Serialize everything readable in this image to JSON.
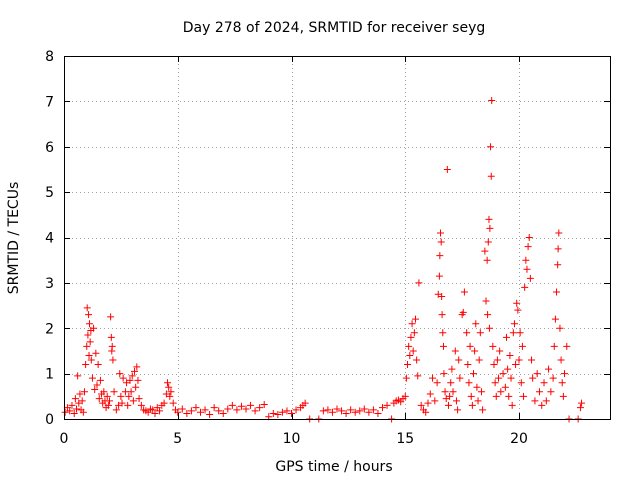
{
  "chart_data": {
    "type": "scatter",
    "title": "Day 278 of 2024, SRMTID for receiver seyg",
    "xlabel": "GPS time / hours",
    "ylabel": "SRMTID / TECUs",
    "xlim": [
      0,
      24
    ],
    "ylim": [
      0,
      8
    ],
    "xticks": [
      0,
      5,
      10,
      15,
      20
    ],
    "yticks": [
      0,
      1,
      2,
      3,
      4,
      5,
      6,
      7,
      8
    ],
    "grid": true,
    "marker": "+",
    "color": "#ff0000",
    "series": [
      {
        "name": "SRMTID",
        "points": [
          [
            0.05,
            0.15
          ],
          [
            0.15,
            0.25
          ],
          [
            0.25,
            0.18
          ],
          [
            0.35,
            0.3
          ],
          [
            0.45,
            0.12
          ],
          [
            0.5,
            0.45
          ],
          [
            0.55,
            0.22
          ],
          [
            0.6,
            0.95
          ],
          [
            0.65,
            0.35
          ],
          [
            0.7,
            0.55
          ],
          [
            0.75,
            0.2
          ],
          [
            0.8,
            0.4
          ],
          [
            0.85,
            0.15
          ],
          [
            0.9,
            0.6
          ],
          [
            0.95,
            1.2
          ],
          [
            1.0,
            1.6
          ],
          [
            1.02,
            2.45
          ],
          [
            1.05,
            1.85
          ],
          [
            1.08,
            2.3
          ],
          [
            1.1,
            1.4
          ],
          [
            1.12,
            2.1
          ],
          [
            1.15,
            1.7
          ],
          [
            1.18,
            1.95
          ],
          [
            1.2,
            1.3
          ],
          [
            1.25,
            0.9
          ],
          [
            1.3,
            2.0
          ],
          [
            1.35,
            0.65
          ],
          [
            1.4,
            1.45
          ],
          [
            1.45,
            0.75
          ],
          [
            1.5,
            1.2
          ],
          [
            1.55,
            0.45
          ],
          [
            1.6,
            0.85
          ],
          [
            1.65,
            0.55
          ],
          [
            1.7,
            0.35
          ],
          [
            1.75,
            0.6
          ],
          [
            1.8,
            0.4
          ],
          [
            1.85,
            0.25
          ],
          [
            1.9,
            0.5
          ],
          [
            1.95,
            0.3
          ],
          [
            2.0,
            0.4
          ],
          [
            2.05,
            2.25
          ],
          [
            2.08,
            1.8
          ],
          [
            2.1,
            1.5
          ],
          [
            2.12,
            1.6
          ],
          [
            2.15,
            1.3
          ],
          [
            2.2,
            0.6
          ],
          [
            2.3,
            0.2
          ],
          [
            2.4,
            0.3
          ],
          [
            2.45,
            1.0
          ],
          [
            2.5,
            0.5
          ],
          [
            2.55,
            0.35
          ],
          [
            2.6,
            0.9
          ],
          [
            2.7,
            0.6
          ],
          [
            2.75,
            0.8
          ],
          [
            2.8,
            0.3
          ],
          [
            2.85,
            0.5
          ],
          [
            2.9,
            0.85
          ],
          [
            2.95,
            0.6
          ],
          [
            3.0,
            0.95
          ],
          [
            3.05,
            0.4
          ],
          [
            3.1,
            1.05
          ],
          [
            3.15,
            0.7
          ],
          [
            3.2,
            1.15
          ],
          [
            3.25,
            0.85
          ],
          [
            3.3,
            0.45
          ],
          [
            3.4,
            0.3
          ],
          [
            3.5,
            0.2
          ],
          [
            3.6,
            0.18
          ],
          [
            3.7,
            0.15
          ],
          [
            3.8,
            0.22
          ],
          [
            3.9,
            0.2
          ],
          [
            4.0,
            0.12
          ],
          [
            4.1,
            0.25
          ],
          [
            4.2,
            0.18
          ],
          [
            4.3,
            0.3
          ],
          [
            4.4,
            0.35
          ],
          [
            4.5,
            0.55
          ],
          [
            4.55,
            0.8
          ],
          [
            4.6,
            0.7
          ],
          [
            4.65,
            0.5
          ],
          [
            4.7,
            0.6
          ],
          [
            4.8,
            0.35
          ],
          [
            4.9,
            0.2
          ],
          [
            5.0,
            0.15
          ],
          [
            5.2,
            0.22
          ],
          [
            5.4,
            0.12
          ],
          [
            5.6,
            0.18
          ],
          [
            5.8,
            0.25
          ],
          [
            6.0,
            0.15
          ],
          [
            6.2,
            0.2
          ],
          [
            6.4,
            0.1
          ],
          [
            6.6,
            0.25
          ],
          [
            6.8,
            0.18
          ],
          [
            7.0,
            0.12
          ],
          [
            7.2,
            0.22
          ],
          [
            7.4,
            0.3
          ],
          [
            7.6,
            0.2
          ],
          [
            7.8,
            0.28
          ],
          [
            8.0,
            0.22
          ],
          [
            8.2,
            0.3
          ],
          [
            8.4,
            0.18
          ],
          [
            8.6,
            0.25
          ],
          [
            8.8,
            0.32
          ],
          [
            9.0,
            0.05
          ],
          [
            9.2,
            0.12
          ],
          [
            9.4,
            0.1
          ],
          [
            9.6,
            0.15
          ],
          [
            9.8,
            0.18
          ],
          [
            10.0,
            0.12
          ],
          [
            10.2,
            0.2
          ],
          [
            10.4,
            0.25
          ],
          [
            10.5,
            0.3
          ],
          [
            10.6,
            0.35
          ],
          [
            10.8,
            0.0
          ],
          [
            11.2,
            0.0
          ],
          [
            11.4,
            0.18
          ],
          [
            11.6,
            0.2
          ],
          [
            11.8,
            0.15
          ],
          [
            12.0,
            0.22
          ],
          [
            12.2,
            0.18
          ],
          [
            12.4,
            0.12
          ],
          [
            12.6,
            0.2
          ],
          [
            12.8,
            0.15
          ],
          [
            13.0,
            0.18
          ],
          [
            13.2,
            0.22
          ],
          [
            13.4,
            0.15
          ],
          [
            13.6,
            0.2
          ],
          [
            13.8,
            0.12
          ],
          [
            14.0,
            0.25
          ],
          [
            14.2,
            0.3
          ],
          [
            14.4,
            0.0
          ],
          [
            14.5,
            0.35
          ],
          [
            14.6,
            0.4
          ],
          [
            14.7,
            0.42
          ],
          [
            14.8,
            0.38
          ],
          [
            14.9,
            0.45
          ],
          [
            15.0,
            0.5
          ],
          [
            15.05,
            0.9
          ],
          [
            15.1,
            1.2
          ],
          [
            15.15,
            1.6
          ],
          [
            15.2,
            1.4
          ],
          [
            15.25,
            1.8
          ],
          [
            15.3,
            2.1
          ],
          [
            15.35,
            1.5
          ],
          [
            15.4,
            1.9
          ],
          [
            15.45,
            2.2
          ],
          [
            15.5,
            1.3
          ],
          [
            15.55,
            0.95
          ],
          [
            15.6,
            3.0
          ],
          [
            15.7,
            0.3
          ],
          [
            15.8,
            0.2
          ],
          [
            15.9,
            0.15
          ],
          [
            16.0,
            0.35
          ],
          [
            16.1,
            0.55
          ],
          [
            16.2,
            0.9
          ],
          [
            16.3,
            0.4
          ],
          [
            16.4,
            0.8
          ],
          [
            16.45,
            2.75
          ],
          [
            16.5,
            3.15
          ],
          [
            16.52,
            3.6
          ],
          [
            16.55,
            4.1
          ],
          [
            16.58,
            3.9
          ],
          [
            16.6,
            2.7
          ],
          [
            16.62,
            2.3
          ],
          [
            16.65,
            1.9
          ],
          [
            16.68,
            1.6
          ],
          [
            16.7,
            1.0
          ],
          [
            16.75,
            0.6
          ],
          [
            16.8,
            0.45
          ],
          [
            16.85,
            5.5
          ],
          [
            16.9,
            0.3
          ],
          [
            16.95,
            0.5
          ],
          [
            17.0,
            0.8
          ],
          [
            17.05,
            1.1
          ],
          [
            17.1,
            0.6
          ],
          [
            17.2,
            1.5
          ],
          [
            17.25,
            0.4
          ],
          [
            17.3,
            0.2
          ],
          [
            17.35,
            1.3
          ],
          [
            17.4,
            0.9
          ],
          [
            17.5,
            2.3
          ],
          [
            17.55,
            2.35
          ],
          [
            17.6,
            2.8
          ],
          [
            17.7,
            1.9
          ],
          [
            17.75,
            1.2
          ],
          [
            17.8,
            0.8
          ],
          [
            17.85,
            1.6
          ],
          [
            17.9,
            0.5
          ],
          [
            17.95,
            0.3
          ],
          [
            18.0,
            1.0
          ],
          [
            18.05,
            1.5
          ],
          [
            18.1,
            2.1
          ],
          [
            18.15,
            0.7
          ],
          [
            18.2,
            0.4
          ],
          [
            18.25,
            1.3
          ],
          [
            18.3,
            1.9
          ],
          [
            18.35,
            0.6
          ],
          [
            18.4,
            0.2
          ],
          [
            18.5,
            3.7
          ],
          [
            18.55,
            2.6
          ],
          [
            18.6,
            3.5
          ],
          [
            18.62,
            2.3
          ],
          [
            18.65,
            3.9
          ],
          [
            18.68,
            4.4
          ],
          [
            18.7,
            2.0
          ],
          [
            18.72,
            4.2
          ],
          [
            18.75,
            6.0
          ],
          [
            18.78,
            5.35
          ],
          [
            18.8,
            7.02
          ],
          [
            18.85,
            1.6
          ],
          [
            18.9,
            1.2
          ],
          [
            18.95,
            0.8
          ],
          [
            19.0,
            0.5
          ],
          [
            19.05,
            1.3
          ],
          [
            19.1,
            0.9
          ],
          [
            19.15,
            1.5
          ],
          [
            19.2,
            0.6
          ],
          [
            19.3,
            1.0
          ],
          [
            19.4,
            0.7
          ],
          [
            19.45,
            1.8
          ],
          [
            19.5,
            1.1
          ],
          [
            19.55,
            0.5
          ],
          [
            19.6,
            1.4
          ],
          [
            19.65,
            0.9
          ],
          [
            19.7,
            0.3
          ],
          [
            19.75,
            1.9
          ],
          [
            19.8,
            2.1
          ],
          [
            19.85,
            1.2
          ],
          [
            19.9,
            2.55
          ],
          [
            19.95,
            2.4
          ],
          [
            20.0,
            1.3
          ],
          [
            20.05,
            1.9
          ],
          [
            20.1,
            0.8
          ],
          [
            20.15,
            1.6
          ],
          [
            20.2,
            0.5
          ],
          [
            20.25,
            2.9
          ],
          [
            20.3,
            3.5
          ],
          [
            20.35,
            3.3
          ],
          [
            20.4,
            3.8
          ],
          [
            20.45,
            4.0
          ],
          [
            20.5,
            3.1
          ],
          [
            20.55,
            1.3
          ],
          [
            20.6,
            0.9
          ],
          [
            20.7,
            0.4
          ],
          [
            20.8,
            1.0
          ],
          [
            20.9,
            0.6
          ],
          [
            21.0,
            0.3
          ],
          [
            21.1,
            0.8
          ],
          [
            21.2,
            0.4
          ],
          [
            21.3,
            1.1
          ],
          [
            21.4,
            0.6
          ],
          [
            21.5,
            0.9
          ],
          [
            21.55,
            1.6
          ],
          [
            21.6,
            2.2
          ],
          [
            21.65,
            2.8
          ],
          [
            21.7,
            3.4
          ],
          [
            21.72,
            3.75
          ],
          [
            21.75,
            4.1
          ],
          [
            21.8,
            2.0
          ],
          [
            21.85,
            1.3
          ],
          [
            21.9,
            0.8
          ],
          [
            21.95,
            0.5
          ],
          [
            22.0,
            1.0
          ],
          [
            22.1,
            1.6
          ],
          [
            22.2,
            0.0
          ],
          [
            22.6,
            0.0
          ],
          [
            22.7,
            0.25
          ],
          [
            22.75,
            0.35
          ]
        ]
      }
    ]
  }
}
